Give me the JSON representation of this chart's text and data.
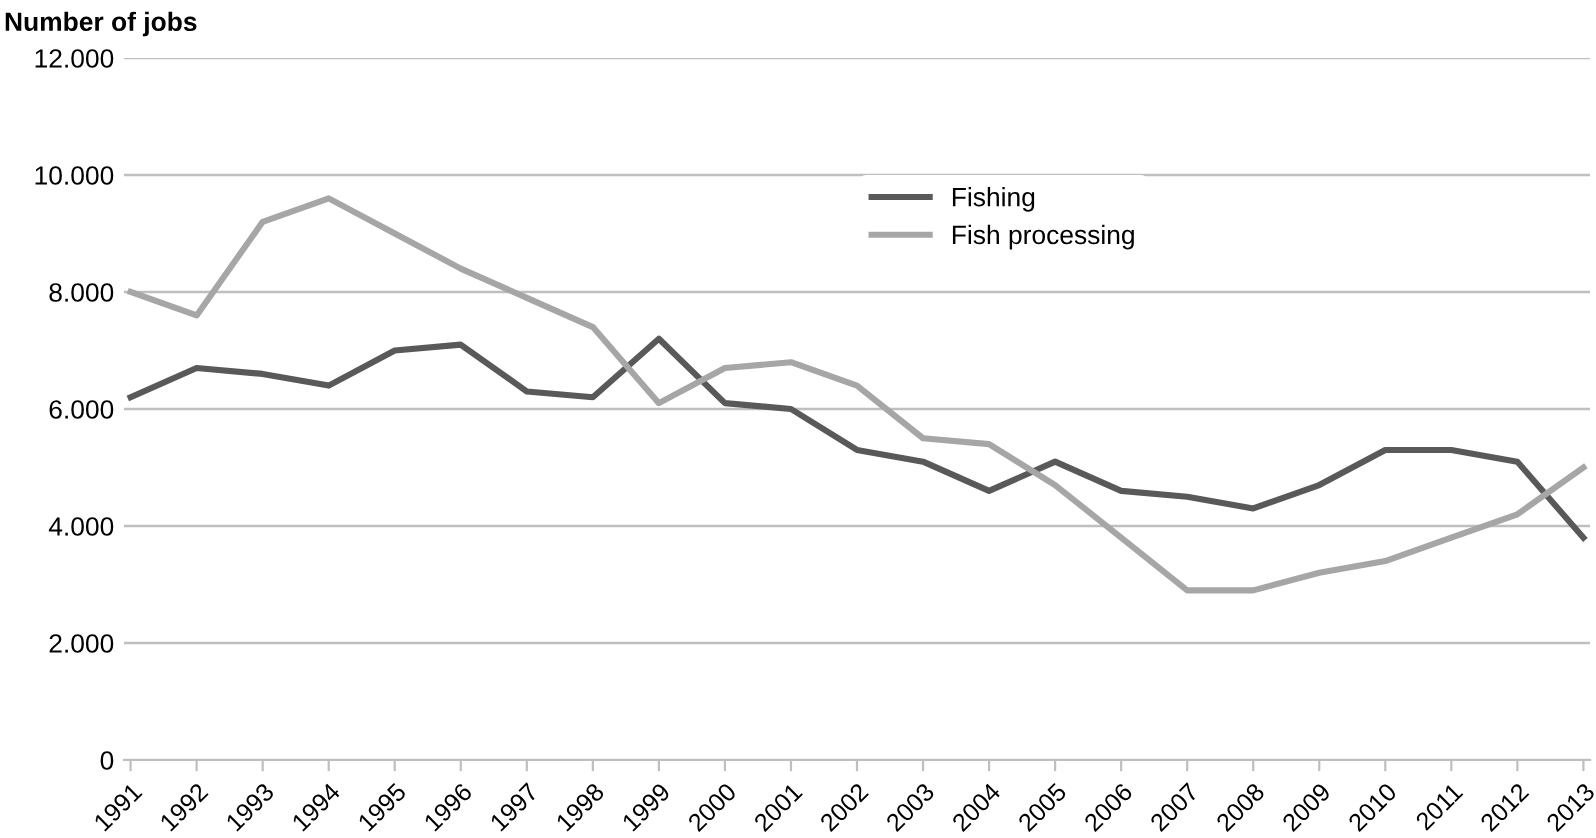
{
  "chart_data": {
    "type": "line",
    "ylabel": "Number of jobs",
    "categories": [
      "1991",
      "1992",
      "1993",
      "1994",
      "1995",
      "1996",
      "1997",
      "1998",
      "1999",
      "2000",
      "2001",
      "2002",
      "2003",
      "2004",
      "2005",
      "2006",
      "2007",
      "2008",
      "2009",
      "2010",
      "2011",
      "2012",
      "2013"
    ],
    "series": [
      {
        "name": "Fishing",
        "color": "#595959",
        "values": [
          6200,
          6700,
          6600,
          6400,
          7000,
          7100,
          6300,
          6200,
          7200,
          6100,
          6000,
          5300,
          5100,
          4600,
          5100,
          4600,
          4500,
          4300,
          4700,
          5300,
          5300,
          5100,
          3800
        ]
      },
      {
        "name": "Fish processing",
        "color": "#a6a6a6",
        "values": [
          8000,
          7600,
          9200,
          9600,
          9000,
          8400,
          7900,
          7400,
          6100,
          6700,
          6800,
          6400,
          5500,
          5400,
          4700,
          3800,
          2900,
          2900,
          3200,
          3400,
          3800,
          4200,
          5000
        ]
      }
    ],
    "ylim": [
      0,
      12000
    ],
    "yticks": [
      {
        "value": 0,
        "label": "0"
      },
      {
        "value": 2000,
        "label": "2.000"
      },
      {
        "value": 4000,
        "label": "4.000"
      },
      {
        "value": 6000,
        "label": "6.000"
      },
      {
        "value": 8000,
        "label": "8.000"
      },
      {
        "value": 10000,
        "label": "10.000"
      },
      {
        "value": 12000,
        "label": "12.000"
      }
    ],
    "grid": "y",
    "legend": "top",
    "marker": "none",
    "line_style": "solid"
  }
}
